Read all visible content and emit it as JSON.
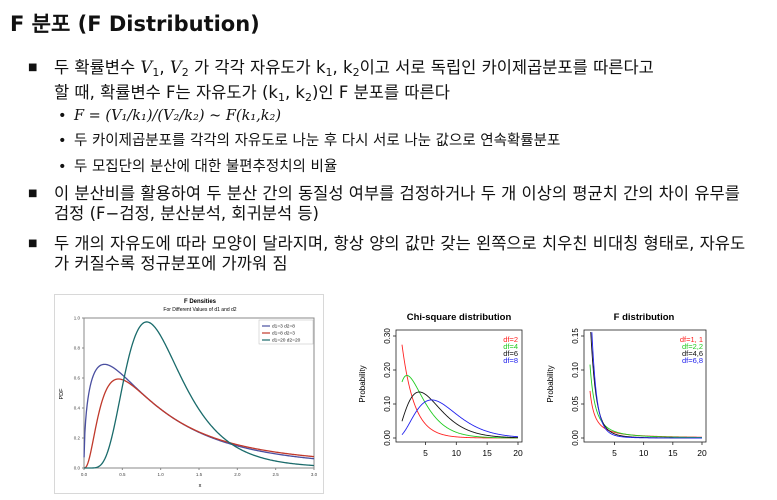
{
  "title": "F 분포 (F Distribution)",
  "bullets": [
    {
      "pre": "두 확률변수 ",
      "var1": "V",
      "sub1": "1",
      "comma": ", ",
      "var2": "V",
      "sub2": "2",
      "mid1": " 가 각각 자유도가 k",
      "k1": "1",
      "mid2": ", k",
      "k2": "2",
      "post": "이고 서로 독립인 카이제곱분포를 따른다고",
      "line2_pre": "할 때, 확률변수 F는 자유도가 (k",
      "line2_k1": "1",
      "line2_mid": ", k",
      "line2_k2": "2",
      "line2_post": ")인 F 분포를 따른다"
    },
    {
      "text": "이 분산비를 활용하여 두 분산 간의 동질성 여부를 검정하거나 두 개 이상의 평균치 간의 차이 유무를 검정 (F−검정, 분산분석, 회귀분석 등)"
    },
    {
      "text": "두 개의 자유도에 따라 모양이 달라지며, 항상 양의 값만 갖는 왼쪽으로 치우친 비대칭 형태로, 자유도가 커질수록 정규분포에 가까워 짐"
    }
  ],
  "sub_bullets": [
    {
      "formula": "F = (V₁/k₁)/(V₂/k₂) ~ F(k₁,k₂)"
    },
    {
      "text": "두 카이제곱분포를 각각의 자유도로 나눈 후 다시 서로 나눈 값으로 연속확률분포"
    },
    {
      "text": "두 모집단의 분산에 대한 불편추정치의 비율"
    }
  ],
  "colors": {
    "red": "#c0392b",
    "blue": "#4a4fa0",
    "teal": "#1a6b6b",
    "green": "#22cc22",
    "chi_blue": "#2222ee"
  },
  "chart_data": [
    {
      "type": "line",
      "title": "F Densities",
      "subtitle": "For Different Values of d1 and d2",
      "xlabel": "x",
      "ylabel": "PDF",
      "xlim": [
        0,
        3
      ],
      "ylim": [
        0,
        1.0
      ],
      "xticks": [
        "0.0",
        "0.5",
        "1.0",
        "1.5",
        "2.0",
        "2.5",
        "3.0"
      ],
      "yticks": [
        "0.0",
        "0.2",
        "0.4",
        "0.6",
        "0.8",
        "1.0"
      ],
      "legend_position": "top-right",
      "series": [
        {
          "name": "d1=3 d2=8",
          "d1": 3,
          "d2": 8,
          "color": "#4a4fa0"
        },
        {
          "name": "d1=8 d2=3",
          "d1": 8,
          "d2": 3,
          "color": "#c0392b"
        },
        {
          "name": "d1=20 d2=20",
          "d1": 20,
          "d2": 20,
          "color": "#1a6b6b"
        }
      ]
    },
    {
      "type": "line",
      "title": "Chi-square distribution",
      "xlabel": "",
      "ylabel": "Probability",
      "xlim": [
        0,
        20
      ],
      "ylim": [
        0,
        0.3
      ],
      "xticks": [
        "5",
        "10",
        "15",
        "20"
      ],
      "yticks": [
        "0.00",
        "0.10",
        "0.20",
        "0.30"
      ],
      "legend_position": "top-right",
      "series": [
        {
          "name": "df=2",
          "df": 2,
          "color": "#ff2222"
        },
        {
          "name": "df=4",
          "df": 4,
          "color": "#22cc22"
        },
        {
          "name": "df=6",
          "df": 6,
          "color": "#111111"
        },
        {
          "name": "df=8",
          "df": 8,
          "color": "#2222ee"
        }
      ]
    },
    {
      "type": "line",
      "title": "F distribution",
      "xlabel": "",
      "ylabel": "Probability",
      "xlim": [
        0,
        20
      ],
      "ylim": [
        0,
        0.15
      ],
      "xticks": [
        "5",
        "10",
        "15",
        "20"
      ],
      "yticks": [
        "0.00",
        "0.05",
        "0.10",
        "0.15"
      ],
      "legend_position": "top-right",
      "series": [
        {
          "name": "df=1, 1",
          "d1": 1,
          "d2": 1,
          "color": "#ff2222"
        },
        {
          "name": "df=2,2",
          "d1": 2,
          "d2": 2,
          "color": "#22cc22"
        },
        {
          "name": "df=4,6",
          "d1": 4,
          "d2": 6,
          "color": "#111111"
        },
        {
          "name": "df=6,8",
          "d1": 6,
          "d2": 8,
          "color": "#2222ee"
        }
      ]
    }
  ]
}
